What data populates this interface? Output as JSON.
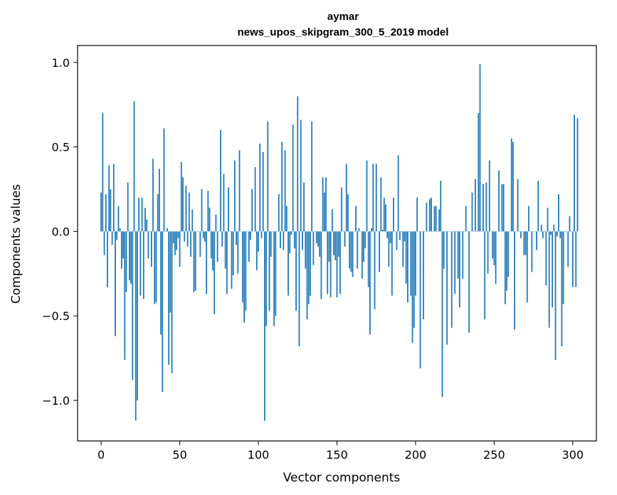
{
  "chart_data": {
    "type": "bar",
    "title": "aymar",
    "subtitle": "news_upos_skipgram_300_5_2019 model",
    "xlabel": "Vector components",
    "ylabel": "Components values",
    "xlim": [
      -15,
      315
    ],
    "ylim": [
      -1.24,
      1.1
    ],
    "xticks": [
      0,
      50,
      100,
      150,
      200,
      250,
      300
    ],
    "yticks": [
      -1.0,
      -0.5,
      0.0,
      0.5,
      1.0
    ],
    "xtick_labels": [
      "0",
      "50",
      "100",
      "150",
      "200",
      "250",
      "300"
    ],
    "ytick_labels": [
      "−1.0",
      "−0.5",
      "0.0",
      "0.5",
      "1.0"
    ],
    "grid": false,
    "colors": {
      "bar": "#1f77b4",
      "axes": "#000000"
    },
    "values": [
      0.23,
      0.7,
      -0.14,
      0.22,
      -0.33,
      0.39,
      0.25,
      -0.08,
      0.4,
      -0.62,
      -0.05,
      0.15,
      0.02,
      -0.22,
      -0.16,
      -0.76,
      -0.36,
      0.29,
      -0.29,
      -0.31,
      -0.88,
      0.77,
      -1.12,
      -1.0,
      0.2,
      -0.38,
      0.2,
      -0.4,
      0.14,
      0.07,
      -0.16,
      0.0,
      -0.21,
      0.43,
      -0.43,
      -0.42,
      0.22,
      0.37,
      -0.61,
      -0.95,
      0.61,
      0.0,
      0.02,
      -0.79,
      -0.48,
      -0.84,
      -0.07,
      -0.14,
      -0.11,
      -0.04,
      -0.21,
      0.41,
      0.32,
      -0.06,
      0.27,
      -0.09,
      0.23,
      -0.15,
      0.13,
      -0.36,
      -0.35,
      0.0,
      0.0,
      -0.15,
      0.25,
      -0.04,
      -0.06,
      -0.37,
      0.24,
      0.14,
      -0.16,
      -0.23,
      -0.49,
      0.1,
      -0.18,
      0.0,
      0.6,
      -0.09,
      0.34,
      -0.22,
      -0.37,
      0.26,
      0.0,
      -0.34,
      -0.26,
      0.42,
      -0.08,
      -0.25,
      0.48,
      0.0,
      -0.42,
      -0.54,
      -0.47,
      0.0,
      -0.18,
      -0.05,
      0.25,
      0.0,
      0.38,
      -0.23,
      -0.12,
      0.52,
      -0.04,
      0.47,
      -1.12,
      -0.56,
      0.65,
      -0.47,
      -0.15,
      0.0,
      -0.56,
      -0.5,
      0.0,
      0.22,
      -0.1,
      0.53,
      -0.11,
      0.48,
      0.15,
      -0.38,
      -0.13,
      -0.02,
      0.63,
      -0.1,
      -0.47,
      0.8,
      -0.68,
      0.66,
      -0.11,
      0.29,
      -0.22,
      -0.52,
      -0.43,
      -0.38,
      0.65,
      -0.2,
      0.0,
      -0.07,
      -0.09,
      -0.15,
      -0.4,
      0.32,
      0.23,
      0.32,
      -0.37,
      -0.18,
      -0.39,
      0.13,
      -0.14,
      -0.17,
      -0.39,
      -0.15,
      -0.37,
      0.26,
      0.0,
      -0.09,
      0.4,
      0.22,
      -0.22,
      -0.24,
      -0.27,
      0.0,
      0.15,
      -0.22,
      0.02,
      0.0,
      -0.28,
      -0.18,
      -0.1,
      0.42,
      -0.33,
      -0.61,
      0.02,
      0.4,
      -0.46,
      0.4,
      0.0,
      -0.24,
      0.32,
      0.01,
      0.2,
      0.16,
      -0.04,
      -0.21,
      -0.07,
      -0.38,
      0.2,
      0.0,
      -0.11,
      0.45,
      -0.05,
      0.0,
      -0.21,
      -0.06,
      -0.31,
      -0.42,
      0.0,
      -0.38,
      -0.66,
      -0.57,
      -0.38,
      0.2,
      0.0,
      -0.81,
      0.0,
      -0.52,
      0.0,
      0.17,
      0.0,
      0.19,
      0.2,
      0.0,
      0.15,
      0.15,
      0.0,
      0.13,
      0.3,
      -0.98,
      -0.22,
      0.0,
      -0.67,
      0.0,
      0.0,
      -0.57,
      0.0,
      -0.37,
      0.0,
      -0.28,
      -0.45,
      0.0,
      -0.28,
      0.0,
      0.15,
      0.0,
      -0.6,
      0.0,
      0.23,
      0.0,
      0.31,
      0.0,
      0.7,
      0.99,
      0.0,
      0.28,
      -0.52,
      0.29,
      -0.25,
      0.42,
      0.0,
      -0.16,
      -0.2,
      -0.31,
      0.0,
      0.36,
      0.0,
      0.28,
      0.28,
      -0.43,
      -0.35,
      -0.27,
      0.0,
      0.55,
      0.53,
      -0.58,
      0.0,
      0.31,
      0.0,
      -0.04,
      0.0,
      -0.14,
      -0.14,
      -0.42,
      0.15,
      0.0,
      -0.24,
      0.0,
      0.0,
      -0.11,
      0.3,
      0.0,
      0.04,
      -0.04,
      0.0,
      -0.32,
      0.14,
      -0.57,
      -0.02,
      -0.45,
      0.04,
      -0.76,
      -0.03,
      0.22,
      -0.04,
      -0.68,
      -0.43,
      0.0,
      0.0,
      -0.21,
      0.09,
      0.0,
      -0.33,
      0.69,
      -0.33,
      0.67
    ],
    "x_start": 0
  }
}
